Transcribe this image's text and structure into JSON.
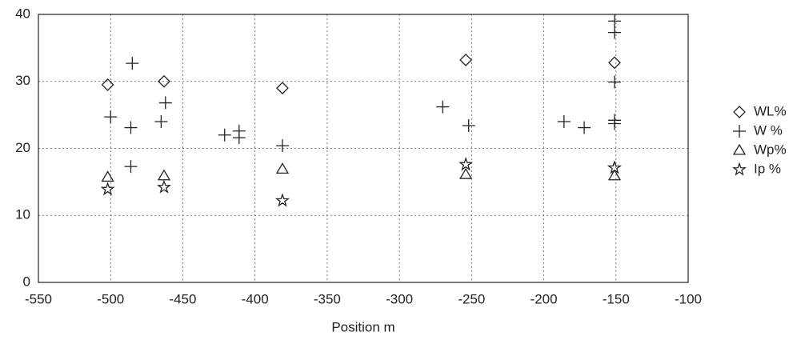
{
  "chart_data": {
    "type": "scatter",
    "x_label": "Position m",
    "xlim": [
      -550,
      -100
    ],
    "xticks": [
      -550,
      -500,
      -450,
      -400,
      -350,
      -300,
      -250,
      -200,
      -150,
      -100
    ],
    "ylim": [
      0,
      40
    ],
    "yticks": [
      0,
      10,
      20,
      30,
      40
    ],
    "grid": true,
    "legend": "right",
    "series": [
      {
        "name": "WL%",
        "marker": "diamond",
        "color": "#222222",
        "x": [
          -502,
          -463,
          -381,
          -254,
          -151
        ],
        "values": [
          29.5,
          30,
          29,
          33.2,
          32.8
        ]
      },
      {
        "name": "W %",
        "marker": "plus",
        "color": "#222222",
        "x": [
          -500,
          -485,
          -486,
          -486,
          -465,
          -462,
          -421,
          -411,
          -411,
          -381,
          -270,
          -252,
          -186,
          -172,
          -151,
          -151,
          -151,
          -151,
          -151
        ],
        "values": [
          24.7,
          32.7,
          23.1,
          17.3,
          24,
          26.8,
          22,
          22.6,
          21.6,
          20.4,
          26.2,
          23.4,
          24,
          23.1,
          39,
          37.3,
          29.9,
          24.2,
          23.7
        ]
      },
      {
        "name": "Wp%",
        "marker": "triangle",
        "color": "#222222",
        "x": [
          -502,
          -463,
          -381,
          -254,
          -151
        ],
        "values": [
          15.7,
          15.9,
          16.9,
          16.1,
          15.9
        ]
      },
      {
        "name": "Ip %",
        "marker": "star",
        "color": "#222222",
        "x": [
          -502,
          -463,
          -381,
          -254,
          -151
        ],
        "values": [
          13.9,
          14.2,
          12.2,
          17.6,
          17.1
        ]
      }
    ]
  }
}
